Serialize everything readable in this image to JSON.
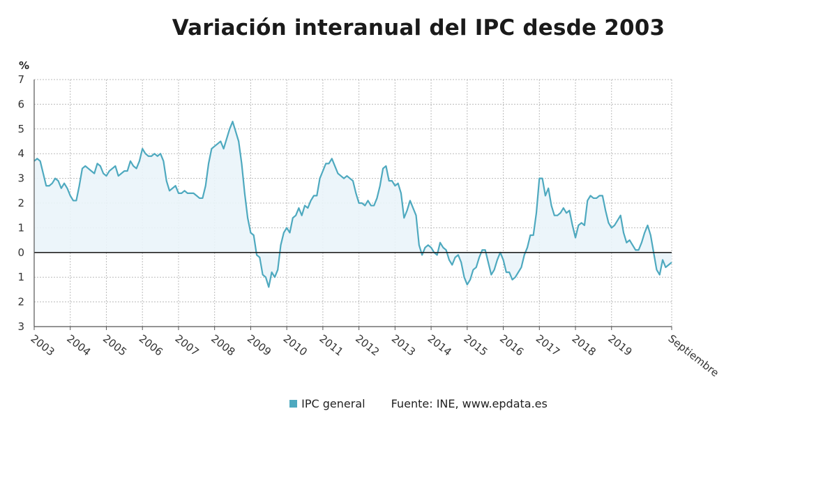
{
  "chart_data": {
    "type": "area",
    "title": "Variación interanual del IPC desde 2003",
    "ylabel": "%",
    "xlabel": "",
    "ylim": [
      -3,
      7
    ],
    "yticks": [
      7,
      6,
      5,
      4,
      3,
      2,
      1,
      0,
      -1,
      -2,
      -3
    ],
    "ytick_labels": [
      "7",
      "6",
      "5",
      "4",
      "3",
      "2",
      "1",
      "0",
      "1",
      "2",
      "3"
    ],
    "xlim": [
      2003.0,
      2020.667
    ],
    "x_tick_labels": [
      {
        "x": 2003,
        "label": "2003"
      },
      {
        "x": 2004,
        "label": "2004"
      },
      {
        "x": 2005,
        "label": "2005"
      },
      {
        "x": 2006,
        "label": "2006"
      },
      {
        "x": 2007,
        "label": "2007"
      },
      {
        "x": 2008,
        "label": "2008"
      },
      {
        "x": 2009,
        "label": "2009"
      },
      {
        "x": 2010,
        "label": "2010"
      },
      {
        "x": 2011,
        "label": "2011"
      },
      {
        "x": 2012,
        "label": "2012"
      },
      {
        "x": 2013,
        "label": "2013"
      },
      {
        "x": 2014,
        "label": "2014"
      },
      {
        "x": 2015,
        "label": "2015"
      },
      {
        "x": 2016,
        "label": "2016"
      },
      {
        "x": 2017,
        "label": "2017"
      },
      {
        "x": 2018,
        "label": "2018"
      },
      {
        "x": 2019,
        "label": "2019"
      },
      {
        "x": 2020.667,
        "label": "Septiembre"
      }
    ],
    "grid": true,
    "legend_position": "bottom",
    "colors": {
      "line": "#4ea9bf",
      "fill": "#eaf4fa",
      "zero_line": "#222222",
      "grid": "#bbbbbb"
    },
    "series": [
      {
        "name": "IPC general",
        "start": "2003-01",
        "frequency": "monthly",
        "values": [
          3.7,
          3.8,
          3.7,
          3.2,
          2.7,
          2.7,
          2.8,
          3.0,
          2.9,
          2.6,
          2.8,
          2.6,
          2.3,
          2.1,
          2.1,
          2.7,
          3.4,
          3.5,
          3.4,
          3.3,
          3.2,
          3.6,
          3.5,
          3.2,
          3.1,
          3.3,
          3.4,
          3.5,
          3.1,
          3.2,
          3.3,
          3.3,
          3.7,
          3.5,
          3.4,
          3.7,
          4.2,
          4.0,
          3.9,
          3.9,
          4.0,
          3.9,
          4.0,
          3.7,
          2.9,
          2.5,
          2.6,
          2.7,
          2.4,
          2.4,
          2.5,
          2.4,
          2.4,
          2.4,
          2.3,
          2.2,
          2.2,
          2.7,
          3.6,
          4.2,
          4.3,
          4.4,
          4.5,
          4.2,
          4.6,
          5.0,
          5.3,
          4.9,
          4.5,
          3.6,
          2.4,
          1.4,
          0.8,
          0.7,
          -0.1,
          -0.2,
          -0.9,
          -1.0,
          -1.4,
          -0.8,
          -1.0,
          -0.7,
          0.3,
          0.8,
          1.0,
          0.8,
          1.4,
          1.5,
          1.8,
          1.5,
          1.9,
          1.8,
          2.1,
          2.3,
          2.3,
          3.0,
          3.3,
          3.6,
          3.6,
          3.8,
          3.5,
          3.2,
          3.1,
          3.0,
          3.1,
          3.0,
          2.9,
          2.4,
          2.0,
          2.0,
          1.9,
          2.1,
          1.9,
          1.9,
          2.2,
          2.7,
          3.4,
          3.5,
          2.9,
          2.9,
          2.7,
          2.8,
          2.4,
          1.4,
          1.7,
          2.1,
          1.8,
          1.5,
          0.3,
          -0.1,
          0.2,
          0.3,
          0.2,
          0.0,
          -0.1,
          0.4,
          0.2,
          0.1,
          -0.3,
          -0.5,
          -0.2,
          -0.1,
          -0.4,
          -1.0,
          -1.3,
          -1.1,
          -0.7,
          -0.6,
          -0.2,
          0.1,
          0.1,
          -0.4,
          -0.9,
          -0.7,
          -0.3,
          0.0,
          -0.3,
          -0.8,
          -0.8,
          -1.1,
          -1.0,
          -0.8,
          -0.6,
          -0.1,
          0.2,
          0.7,
          0.7,
          1.6,
          3.0,
          3.0,
          2.3,
          2.6,
          1.9,
          1.5,
          1.5,
          1.6,
          1.8,
          1.6,
          1.7,
          1.1,
          0.6,
          1.1,
          1.2,
          1.1,
          2.1,
          2.3,
          2.2,
          2.2,
          2.3,
          2.3,
          1.7,
          1.2,
          1.0,
          1.1,
          1.3,
          1.5,
          0.8,
          0.4,
          0.5,
          0.3,
          0.1,
          0.1,
          0.4,
          0.8,
          1.1,
          0.7,
          0.0,
          -0.7,
          -0.9,
          -0.3,
          -0.6,
          -0.5,
          -0.4
        ]
      }
    ]
  },
  "legend": {
    "series_label": "IPC general",
    "source": "Fuente: INE, www.epdata.es"
  }
}
